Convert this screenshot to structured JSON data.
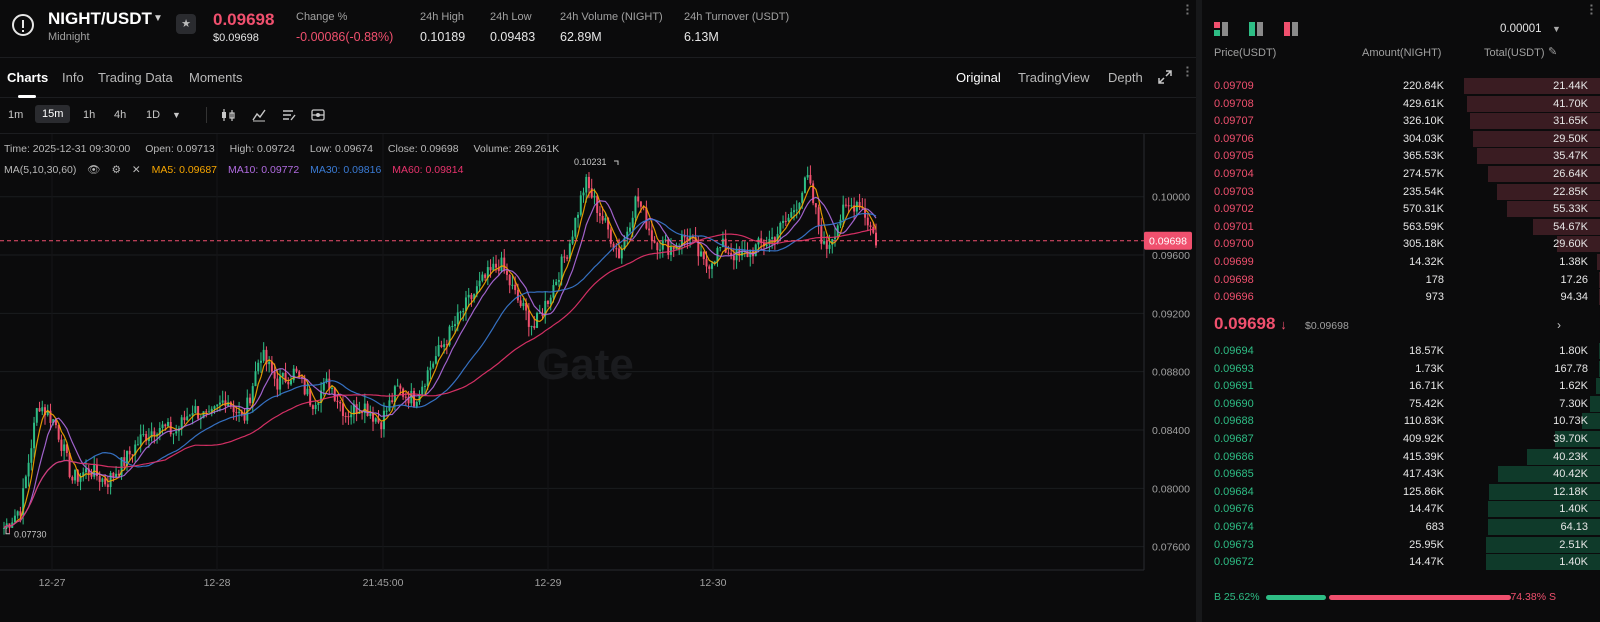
{
  "header": {
    "pair": "NIGHT/USDT",
    "pair_sub": "Midnight",
    "last_price": "0.09698",
    "last_price_usd": "$0.09698",
    "stats": [
      {
        "label": "Change %",
        "value": "-0.00086(-0.88%)",
        "negative": true
      },
      {
        "label": "24h High",
        "value": "0.10189"
      },
      {
        "label": "24h Low",
        "value": "0.09483"
      },
      {
        "label": "24h Volume (NIGHT)",
        "value": "62.89M"
      },
      {
        "label": "24h Turnover (USDT)",
        "value": "6.13M"
      }
    ]
  },
  "tabs": {
    "left": [
      "Charts",
      "Info",
      "Trading Data",
      "Moments"
    ],
    "right": [
      "Original",
      "TradingView",
      "Depth"
    ]
  },
  "toolbar": {
    "timeframes": [
      "1m",
      "15m",
      "1h",
      "4h",
      "1D"
    ]
  },
  "chart": {
    "legend": {
      "time": "Time: 2025-12-31 09:30:00",
      "open": "Open: 0.09713",
      "high": "High: 0.09724",
      "low": "Low: 0.09674",
      "close": "Close: 0.09698",
      "volume": "Volume: 269.261K"
    },
    "ma_label": "MA(5,10,30,60)",
    "ma5": "MA5: 0.09687",
    "ma10": "MA10: 0.09772",
    "ma30": "MA30: 0.09816",
    "ma60": "MA60: 0.09814",
    "high_marker": "0.10231",
    "low_marker": "0.07730",
    "current_price_tag": "0.09698",
    "watermark": "Gate",
    "colors": {
      "up": "#2ebd85",
      "down": "#f0506e",
      "ma5": "#f7a600",
      "ma10": "#b06be0",
      "ma30": "#3a7bd5",
      "ma60": "#e8336d"
    }
  },
  "chart_data": {
    "type": "candlestick",
    "title": "NIGHT/USDT",
    "ylim": [
      0.0744,
      0.1043
    ],
    "y_ticks": [
      "0.10000",
      "0.09600",
      "0.09200",
      "0.08800",
      "0.08400",
      "0.08000",
      "0.07600"
    ],
    "x_ticks": [
      "12-27",
      "12-28",
      "21:45:00",
      "12-29",
      "12-30"
    ],
    "current_price": 0.09698,
    "high": 0.10231,
    "low": 0.0773,
    "series_path_close": [
      0.0773,
      0.0787,
      0.0859,
      0.0845,
      0.0806,
      0.0813,
      0.0804,
      0.0818,
      0.0834,
      0.0843,
      0.0838,
      0.0855,
      0.0847,
      0.0863,
      0.0846,
      0.0893,
      0.0872,
      0.088,
      0.0859,
      0.0873,
      0.0851,
      0.0858,
      0.0845,
      0.0868,
      0.0861,
      0.0885,
      0.0905,
      0.0925,
      0.0942,
      0.0955,
      0.093,
      0.091,
      0.0935,
      0.0965,
      0.101,
      0.0985,
      0.096,
      0.1,
      0.097,
      0.0965,
      0.0974,
      0.0952,
      0.0966,
      0.0958,
      0.0965,
      0.0972,
      0.0987,
      0.1012,
      0.0963,
      0.0988,
      0.0998,
      0.097
    ]
  },
  "orderbook": {
    "precision": "0.00001",
    "headers": {
      "price": "Price(USDT)",
      "amount": "Amount(NIGHT)",
      "total": "Total(USDT)"
    },
    "asks": [
      {
        "price": "0.09709",
        "amount": "220.84K",
        "total": "21.44K",
        "depth": 0.91
      },
      {
        "price": "0.09708",
        "amount": "429.61K",
        "total": "41.70K",
        "depth": 0.89
      },
      {
        "price": "0.09707",
        "amount": "326.10K",
        "total": "31.65K",
        "depth": 0.87
      },
      {
        "price": "0.09706",
        "amount": "304.03K",
        "total": "29.50K",
        "depth": 0.85
      },
      {
        "price": "0.09705",
        "amount": "365.53K",
        "total": "35.47K",
        "depth": 0.82
      },
      {
        "price": "0.09704",
        "amount": "274.57K",
        "total": "26.64K",
        "depth": 0.75
      },
      {
        "price": "0.09703",
        "amount": "235.54K",
        "total": "22.85K",
        "depth": 0.69
      },
      {
        "price": "0.09702",
        "amount": "570.31K",
        "total": "55.33K",
        "depth": 0.62
      },
      {
        "price": "0.09701",
        "amount": "563.59K",
        "total": "54.67K",
        "depth": 0.45
      },
      {
        "price": "0.09700",
        "amount": "305.18K",
        "total": "29.60K",
        "depth": 0.29
      },
      {
        "price": "0.09699",
        "amount": "14.32K",
        "total": "1.38K",
        "depth": 0.02
      },
      {
        "price": "0.09698",
        "amount": "178",
        "total": "17.26",
        "depth": 0.01
      },
      {
        "price": "0.09696",
        "amount": "973",
        "total": "94.34",
        "depth": 0.01
      }
    ],
    "mid_price": "0.09698",
    "mid_usd": "$0.09698",
    "bids": [
      {
        "price": "0.09694",
        "amount": "18.57K",
        "total": "1.80K",
        "depth": 0.01
      },
      {
        "price": "0.09693",
        "amount": "1.73K",
        "total": "167.78",
        "depth": 0.01
      },
      {
        "price": "0.09691",
        "amount": "16.71K",
        "total": "1.62K",
        "depth": 0.03
      },
      {
        "price": "0.09690",
        "amount": "75.42K",
        "total": "7.30K",
        "depth": 0.07
      },
      {
        "price": "0.09688",
        "amount": "110.83K",
        "total": "10.73K",
        "depth": 0.12
      },
      {
        "price": "0.09687",
        "amount": "409.92K",
        "total": "39.70K",
        "depth": 0.3
      },
      {
        "price": "0.09686",
        "amount": "415.39K",
        "total": "40.23K",
        "depth": 0.49
      },
      {
        "price": "0.09685",
        "amount": "417.43K",
        "total": "40.42K",
        "depth": 0.68
      },
      {
        "price": "0.09684",
        "amount": "125.86K",
        "total": "12.18K",
        "depth": 0.74
      },
      {
        "price": "0.09676",
        "amount": "14.47K",
        "total": "1.40K",
        "depth": 0.75
      },
      {
        "price": "0.09674",
        "amount": "683",
        "total": "64.13",
        "depth": 0.75
      },
      {
        "price": "0.09673",
        "amount": "25.95K",
        "total": "2.51K",
        "depth": 0.76
      },
      {
        "price": "0.09672",
        "amount": "14.47K",
        "total": "1.40K",
        "depth": 0.76
      }
    ],
    "buy_ratio": "B 25.62%",
    "sell_ratio": "74.38% S"
  }
}
